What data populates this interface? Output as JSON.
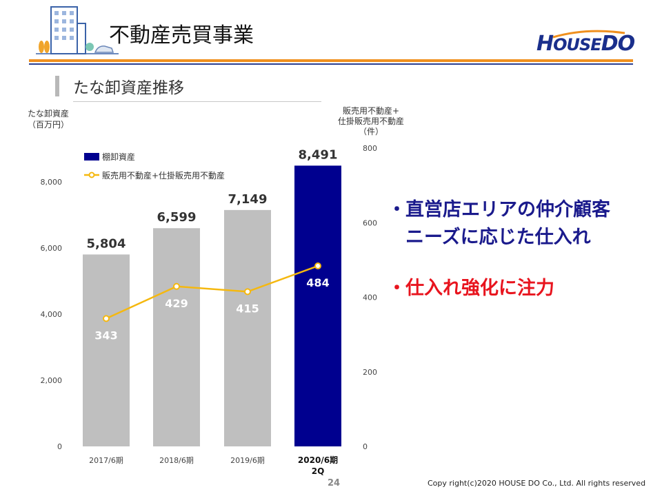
{
  "header": {
    "title": "不動産売買事業",
    "logo_text": "HOUSEDO",
    "logo_parts": [
      "H",
      "OUSE",
      "DO"
    ]
  },
  "section": {
    "title": "たな卸資産推移"
  },
  "axis": {
    "left_title": "たな卸資産\n（百万円）",
    "right_title": "販売用不動産+\n仕掛販売用不動産\n（件）"
  },
  "chart_data": {
    "type": "bar",
    "categories": [
      "2017/6期",
      "2018/6期",
      "2019/6期",
      "2020/6期\n2Q"
    ],
    "series": [
      {
        "name": "棚卸資産",
        "type": "bar",
        "axis": "left",
        "values": [
          5804,
          6599,
          7149,
          8491
        ],
        "labels": [
          "5,804",
          "6,599",
          "7,149",
          "8,491"
        ],
        "colors": [
          "#bfbfbf",
          "#bfbfbf",
          "#bfbfbf",
          "#00008f"
        ]
      },
      {
        "name": "販売用不動産+仕掛販売用不動産",
        "type": "line",
        "axis": "right",
        "values": [
          343,
          429,
          415,
          484
        ],
        "labels": [
          "343",
          "429",
          "415",
          "484"
        ],
        "color": "#f5b80f"
      }
    ],
    "left_axis": {
      "ylim": [
        0,
        9000
      ],
      "ticks": [
        0,
        2000,
        4000,
        6000,
        8000
      ],
      "tick_labels": [
        "0",
        "2,000",
        "4,000",
        "6,000",
        "8,000"
      ]
    },
    "right_axis": {
      "ylim": [
        0,
        800
      ],
      "ticks": [
        0,
        200,
        400,
        600,
        800
      ],
      "tick_labels": [
        "0",
        "200",
        "400",
        "600",
        "800"
      ]
    },
    "legend_position": "top-left",
    "grid": false
  },
  "bullets": {
    "line1": "直営店エリアの仲介顧客",
    "line1b": "ニーズに応じた仕入れ",
    "line2": "仕入れ強化に注力",
    "dot": "・"
  },
  "footer": {
    "page_number": "24",
    "copyright": "Copy right(c)2020  HOUSE DO Co., Ltd. All rights reserved"
  },
  "colors": {
    "accent_orange": "#f0901e",
    "brand_blue": "#1a2f8c",
    "bar_gray": "#bfbfbf",
    "bar_navy": "#00008f",
    "line_yellow": "#f5b80f",
    "bullet_red": "#e8141e"
  }
}
